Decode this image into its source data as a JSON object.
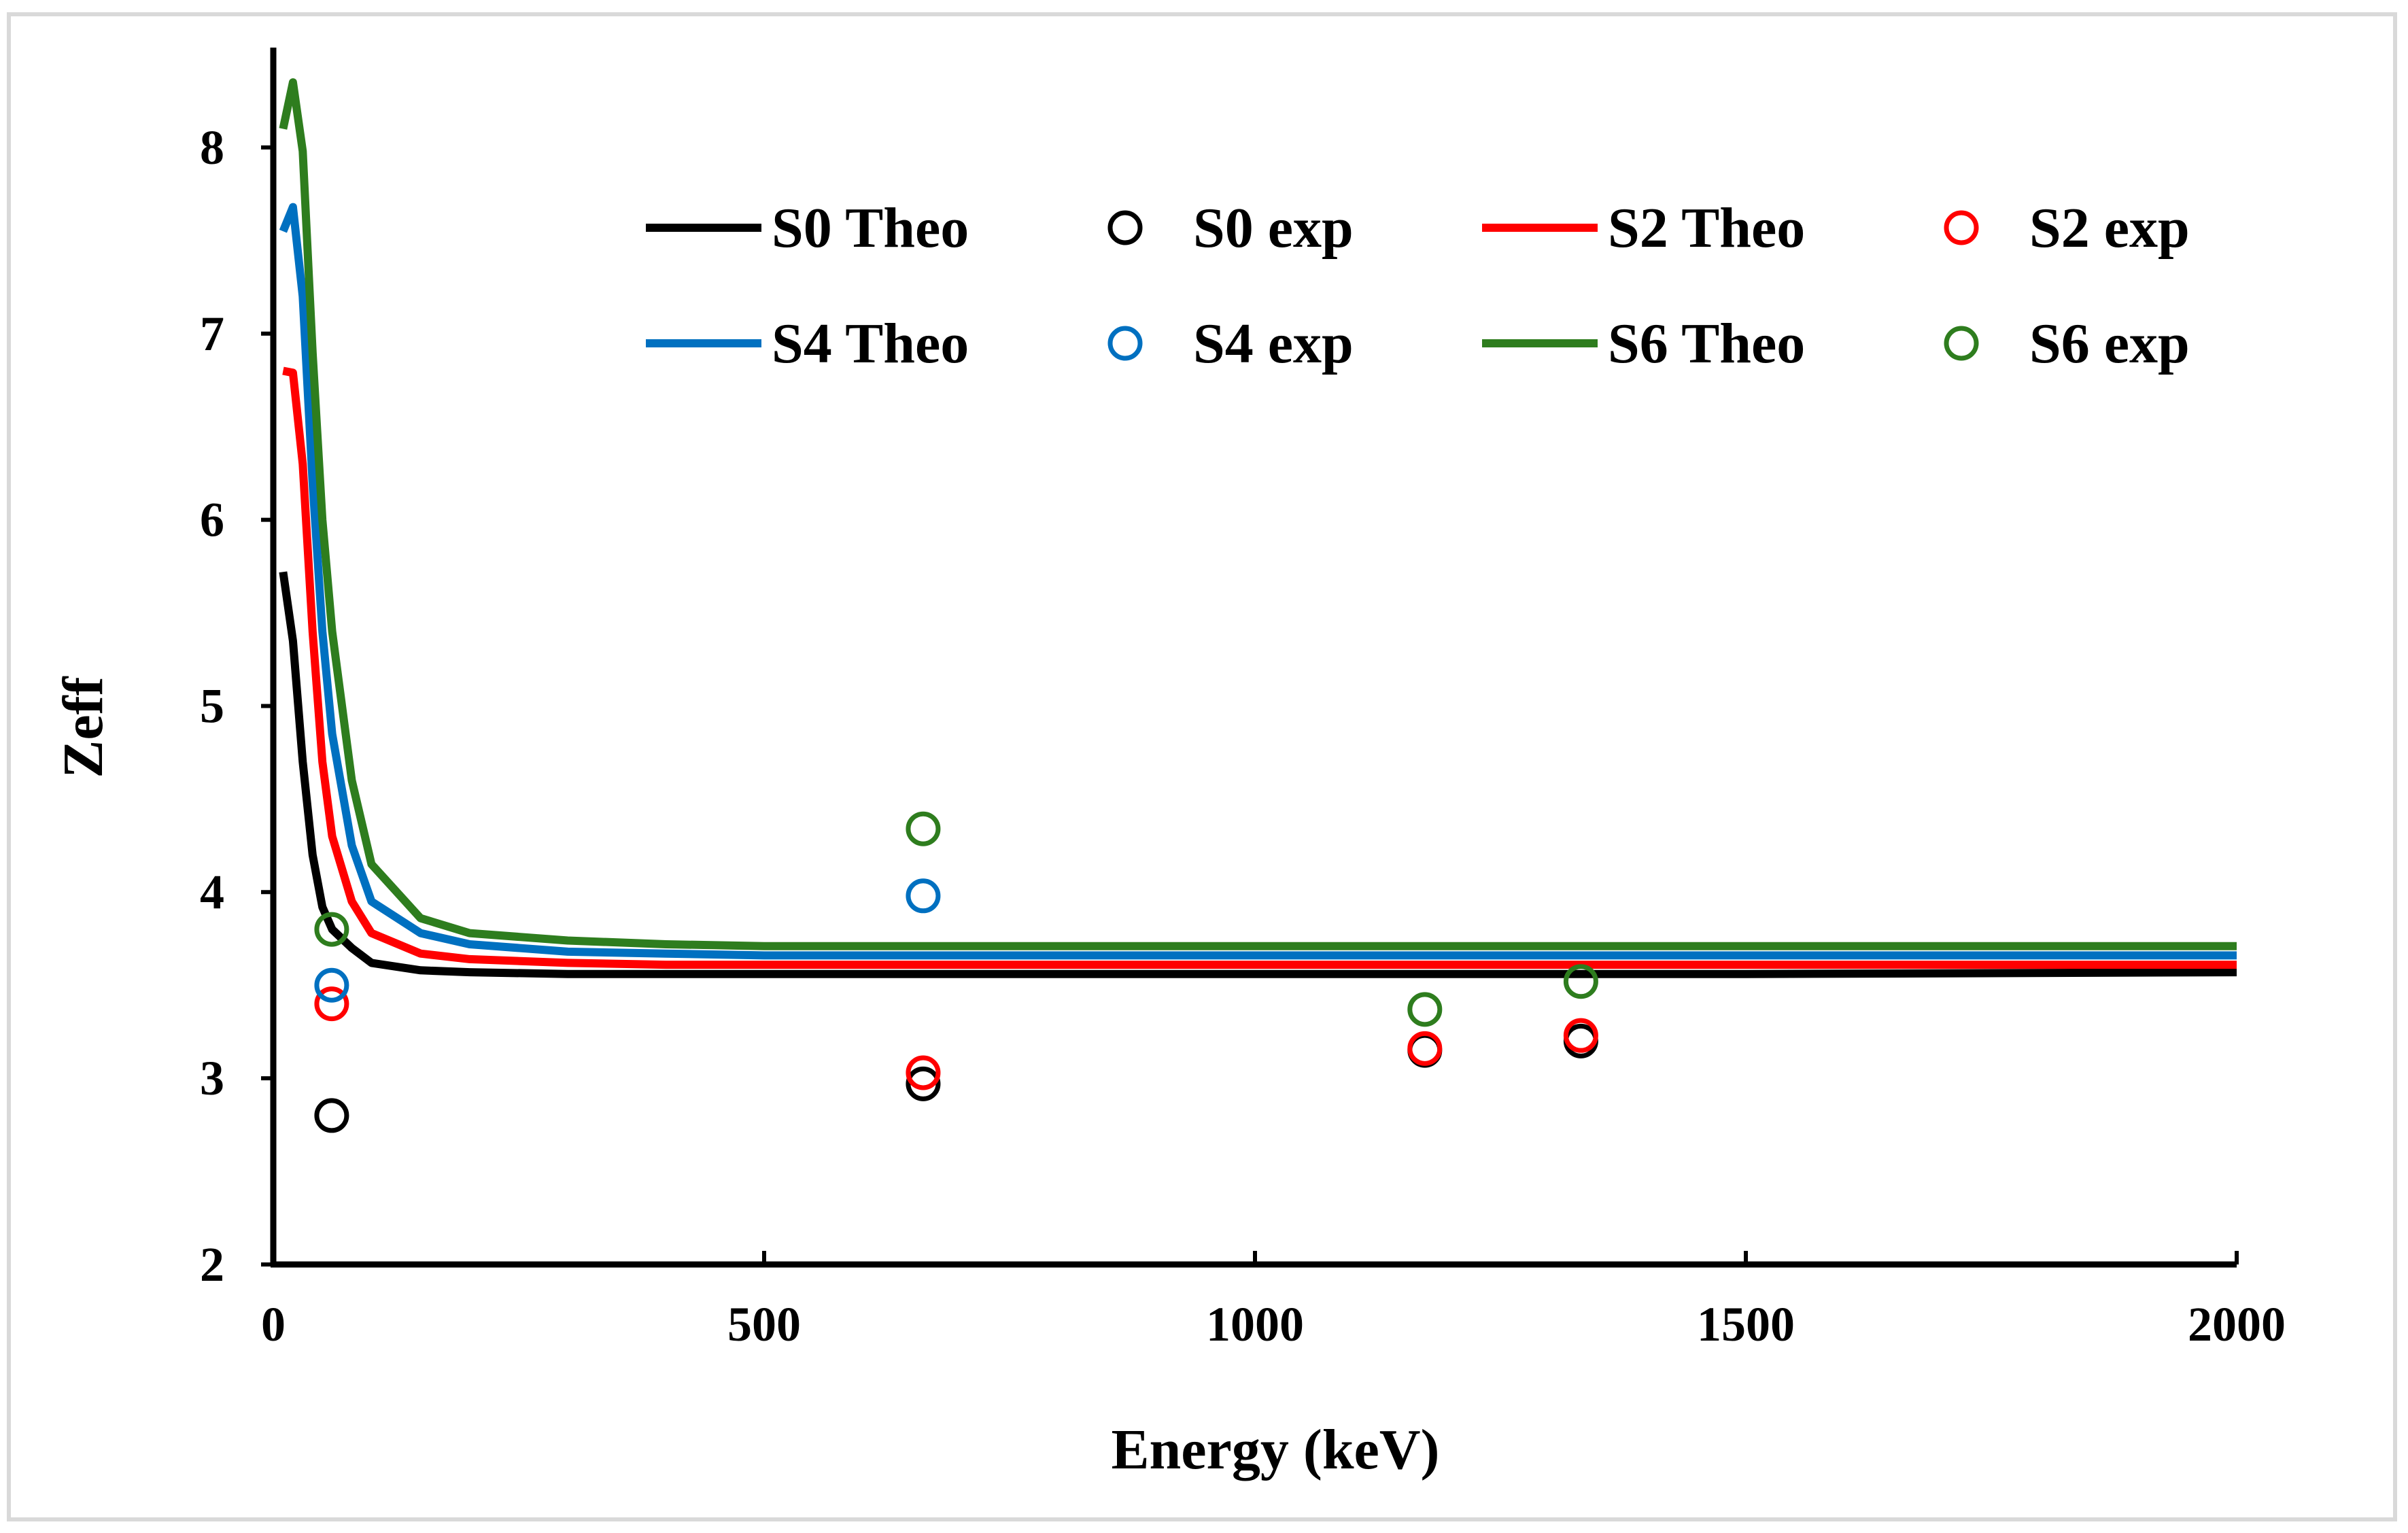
{
  "chart_data": {
    "type": "line",
    "title": "",
    "xlabel": "Energy (keV)",
    "ylabel": "Zeff",
    "xlim": [
      0,
      2000
    ],
    "ylim": [
      2,
      8.5
    ],
    "xticks": [
      0,
      500,
      1000,
      1500,
      2000
    ],
    "yticks": [
      2,
      3,
      4,
      5,
      6,
      7,
      8
    ],
    "grid": false,
    "legend_position": "top-right",
    "series": [
      {
        "name": "S0 Theo",
        "kind": "line",
        "color": "#000000",
        "x": [
          10,
          20,
          30,
          40,
          50,
          60,
          80,
          100,
          150,
          200,
          300,
          400,
          500,
          600,
          800,
          1000,
          1250,
          1500,
          2000
        ],
        "y": [
          5.72,
          5.35,
          4.7,
          4.2,
          3.92,
          3.8,
          3.7,
          3.62,
          3.58,
          3.57,
          3.56,
          3.56,
          3.56,
          3.56,
          3.56,
          3.56,
          3.56,
          3.56,
          3.57
        ]
      },
      {
        "name": "S0 exp",
        "kind": "scatter",
        "color": "#000000",
        "x": [
          59.5,
          662,
          1173,
          1332
        ],
        "y": [
          2.8,
          2.97,
          3.15,
          3.2
        ]
      },
      {
        "name": "S2 Theo",
        "kind": "line",
        "color": "#ff0000",
        "x": [
          10,
          20,
          30,
          40,
          50,
          60,
          80,
          100,
          150,
          200,
          300,
          400,
          500,
          600,
          800,
          1000,
          1250,
          1500,
          2000
        ],
        "y": [
          6.8,
          6.79,
          6.3,
          5.4,
          4.7,
          4.3,
          3.95,
          3.78,
          3.67,
          3.64,
          3.62,
          3.61,
          3.61,
          3.61,
          3.61,
          3.61,
          3.61,
          3.61,
          3.61
        ]
      },
      {
        "name": "S2 exp",
        "kind": "scatter",
        "color": "#ff0000",
        "x": [
          59.5,
          662,
          1173,
          1332
        ],
        "y": [
          3.4,
          3.03,
          3.16,
          3.23
        ]
      },
      {
        "name": "S4 Theo",
        "kind": "line",
        "color": "#0070c0",
        "x": [
          10,
          20,
          30,
          40,
          50,
          60,
          80,
          100,
          150,
          200,
          300,
          400,
          500,
          600,
          800,
          1000,
          1250,
          1500,
          2000
        ],
        "y": [
          7.55,
          7.68,
          7.2,
          6.2,
          5.4,
          4.85,
          4.25,
          3.95,
          3.78,
          3.72,
          3.68,
          3.67,
          3.66,
          3.66,
          3.66,
          3.66,
          3.66,
          3.66,
          3.66
        ]
      },
      {
        "name": "S4 exp",
        "kind": "scatter",
        "color": "#0070c0",
        "x": [
          59.5,
          662
        ],
        "y": [
          3.5,
          3.98
        ]
      },
      {
        "name": "S6 Theo",
        "kind": "line",
        "color": "#2e7d1e",
        "x": [
          10,
          20,
          30,
          40,
          50,
          60,
          80,
          100,
          150,
          200,
          300,
          400,
          500,
          600,
          800,
          1000,
          1250,
          1500,
          2000
        ],
        "y": [
          8.1,
          8.35,
          7.98,
          6.9,
          6.0,
          5.4,
          4.6,
          4.15,
          3.86,
          3.78,
          3.74,
          3.72,
          3.71,
          3.71,
          3.71,
          3.71,
          3.71,
          3.71,
          3.71
        ]
      },
      {
        "name": "S6 exp",
        "kind": "scatter",
        "color": "#2e7d1e",
        "x": [
          59.5,
          662,
          1173,
          1332
        ],
        "y": [
          3.8,
          4.34,
          3.37,
          3.52
        ]
      }
    ]
  }
}
